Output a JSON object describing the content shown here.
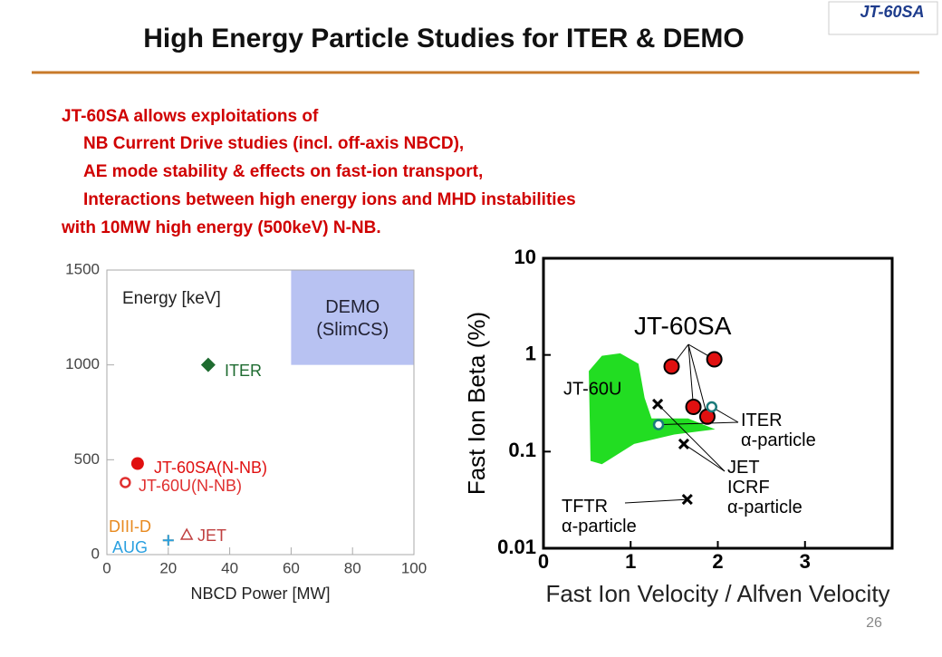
{
  "slide": {
    "title": "High Energy Particle Studies for ITER & DEMO",
    "logo": "JT-60SA",
    "text": [
      "JT-60SA allows exploitations of",
      "NB Current Drive studies (incl. off-axis NBCD),",
      "AE mode stability & effects on fast-ion transport,",
      "Interactions between high energy ions and MHD instabilities",
      "with 10MW high energy (500keV) N-NB."
    ],
    "page_number": "26"
  },
  "chart_data": [
    {
      "type": "scatter",
      "xlabel": "NBCD Power [MW]",
      "annotation": "Energy [keV]",
      "xlim": [
        0,
        100
      ],
      "ylim": [
        0,
        1500
      ],
      "xticks": [
        0,
        20,
        40,
        60,
        80,
        100
      ],
      "yticks": [
        0,
        500,
        1000,
        1500
      ],
      "region": {
        "name": "DEMO (SlimCS)",
        "x": [
          60,
          100
        ],
        "y": [
          1000,
          1500
        ],
        "color": "#b8c2f2"
      },
      "series": [
        {
          "name": "ITER",
          "color": "#1e6b30",
          "marker": "diamond",
          "x": [
            33
          ],
          "values": [
            1000
          ]
        },
        {
          "name": "JT-60SA(N-NB)",
          "color": "#e01010",
          "marker": "circle",
          "x": [
            10
          ],
          "values": [
            480
          ]
        },
        {
          "name": "JT-60U(N-NB)",
          "color": "#e03030",
          "marker": "open-circle",
          "x": [
            6
          ],
          "values": [
            380
          ]
        },
        {
          "name": "DIII-D",
          "color": "#e88a20",
          "marker": "plus",
          "x": [
            20
          ],
          "values": [
            75
          ]
        },
        {
          "name": "AUG",
          "color": "#2aa0e0",
          "marker": "plus",
          "x": [
            20
          ],
          "values": [
            75
          ]
        },
        {
          "name": "JET",
          "color": "#c04040",
          "marker": "triangle",
          "x": [
            26
          ],
          "values": [
            105
          ]
        }
      ]
    },
    {
      "type": "scatter",
      "xlabel": "Fast Ion Velocity / Alfven Velocity",
      "ylabel": "Fast Ion Beta (%)",
      "log_y": true,
      "xlim": [
        0,
        4
      ],
      "ylim": [
        0.01,
        10
      ],
      "xticks": [
        0,
        1,
        2,
        3
      ],
      "yticks": [
        0.01,
        0.1,
        1,
        10
      ],
      "area": {
        "name": "JT-60U",
        "color": "#22dd22",
        "x": [
          0.52,
          0.67,
          0.88,
          1.09,
          1.16,
          1.24,
          1.66,
          1.97,
          1.5,
          1.04,
          0.67,
          0.54
        ],
        "values": [
          0.68,
          0.98,
          1.04,
          0.81,
          0.36,
          0.22,
          0.22,
          0.17,
          0.15,
          0.12,
          0.074,
          0.08
        ]
      },
      "series": [
        {
          "name": "JT-60SA",
          "color": "#e01010",
          "marker": "circle",
          "x": [
            1.47,
            1.96,
            1.72,
            1.88
          ],
          "values": [
            0.76,
            0.9,
            0.29,
            0.23
          ]
        },
        {
          "name": "ITER α-particle",
          "color": "#1a7a7a",
          "marker": "open-circle",
          "x": [
            1.93,
            1.32
          ],
          "values": [
            0.29,
            0.19
          ]
        },
        {
          "name": "JET ICRF α-particle",
          "color": "#000000",
          "marker": "cross",
          "x": [
            1.31,
            1.61
          ],
          "values": [
            0.31,
            0.12
          ]
        },
        {
          "name": "TFTR α-particle",
          "color": "#000000",
          "marker": "cross",
          "x": [
            1.65
          ],
          "values": [
            0.032
          ]
        }
      ]
    }
  ]
}
